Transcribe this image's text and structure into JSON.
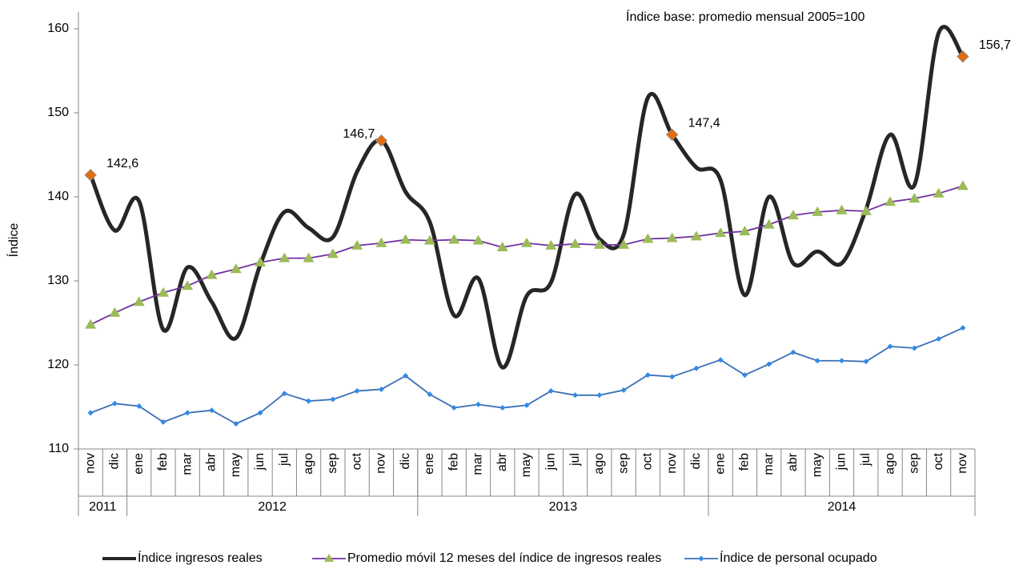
{
  "chart_data": {
    "type": "line",
    "annotation": "Índice base: promedio  mensual 2005=100",
    "ylabel": "Índice",
    "ylim": [
      110,
      162
    ],
    "yticks": [
      110,
      120,
      130,
      140,
      150,
      160
    ],
    "category_groups": [
      {
        "label": "2011",
        "categories": [
          "nov",
          "dic"
        ]
      },
      {
        "label": "2012",
        "categories": [
          "ene",
          "feb",
          "mar",
          "abr",
          "may",
          "jun",
          "jul",
          "ago",
          "sep",
          "oct",
          "nov",
          "dic"
        ]
      },
      {
        "label": "2013",
        "categories": [
          "ene",
          "feb",
          "mar",
          "abr",
          "may",
          "jun",
          "jul",
          "ago",
          "sep",
          "oct",
          "nov",
          "dic"
        ]
      },
      {
        "label": "2014",
        "categories": [
          "ene",
          "feb",
          "mar",
          "abr",
          "may",
          "jun",
          "jul",
          "ago",
          "sep",
          "oct",
          "nov"
        ]
      }
    ],
    "series": [
      {
        "name": "Índice ingresos reales",
        "color": "#262626",
        "smooth": true,
        "values": [
          142.6,
          136.0,
          139.5,
          124.2,
          131.6,
          127.5,
          123.2,
          131.9,
          138.2,
          136.3,
          135.2,
          143.0,
          146.7,
          140.6,
          137.0,
          125.9,
          130.3,
          119.7,
          128.2,
          129.8,
          140.3,
          135.0,
          135.5,
          151.8,
          147.4,
          143.5,
          142.0,
          128.3,
          140.0,
          132.1,
          133.5,
          132.1,
          138.5,
          147.4,
          141.4,
          159.5,
          156.7
        ],
        "value_labels": [
          "142,6",
          null,
          null,
          null,
          null,
          null,
          null,
          null,
          null,
          null,
          null,
          null,
          "146,7",
          null,
          null,
          null,
          null,
          null,
          null,
          null,
          null,
          null,
          null,
          null,
          "147,4",
          null,
          null,
          null,
          null,
          null,
          null,
          null,
          null,
          null,
          null,
          null,
          "156,7"
        ]
      },
      {
        "name": "Promedio móvil 12 meses del índice de ingresos reales",
        "color": "#7030a0",
        "marker": "triangle",
        "marker_color": "#9bbb59",
        "values": [
          124.8,
          126.2,
          127.5,
          128.6,
          129.4,
          130.7,
          131.4,
          132.2,
          132.7,
          132.7,
          133.2,
          134.2,
          134.5,
          134.9,
          134.8,
          134.9,
          134.8,
          134.0,
          134.5,
          134.2,
          134.4,
          134.3,
          134.3,
          135.0,
          135.1,
          135.3,
          135.7,
          135.9,
          136.7,
          137.8,
          138.2,
          138.4,
          138.3,
          139.4,
          139.8,
          140.4,
          141.3
        ]
      },
      {
        "name": "Índice de personal ocupado",
        "color": "#3a6fb5",
        "marker": "diamond",
        "marker_color": "#2f8ae8",
        "values": [
          114.3,
          115.4,
          115.1,
          113.2,
          114.3,
          114.6,
          113.0,
          114.3,
          116.6,
          115.7,
          115.9,
          116.9,
          117.1,
          118.7,
          116.5,
          114.9,
          115.3,
          114.9,
          115.2,
          116.9,
          116.4,
          116.4,
          117.0,
          118.8,
          118.6,
          119.6,
          120.6,
          118.8,
          120.1,
          121.5,
          120.5,
          120.5,
          120.4,
          122.2,
          122.0,
          123.1,
          124.4
        ]
      }
    ]
  }
}
